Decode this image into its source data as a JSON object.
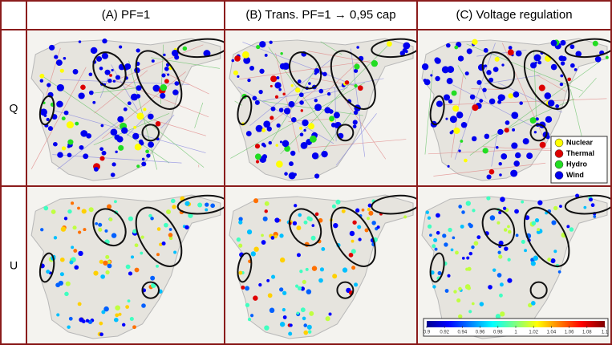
{
  "header": {
    "columns": [
      "(A) PF=1",
      "(B) Trans. PF=1 → 0,95 cap",
      "(C) Voltage regulation"
    ]
  },
  "rows": [
    {
      "label": "Q"
    },
    {
      "label": "U"
    }
  ],
  "legend": {
    "items": [
      {
        "label": "Nuclear",
        "color": "#ffff00"
      },
      {
        "label": "Thermal",
        "color": "#dd0000"
      },
      {
        "label": "Hydro",
        "color": "#22dd22"
      },
      {
        "label": "Wind",
        "color": "#0000ee"
      }
    ]
  },
  "colorbar": {
    "ticks": [
      0.9,
      0.92,
      0.94,
      0.96,
      0.98,
      1,
      1.02,
      1.04,
      1.06,
      1.08,
      1.1
    ]
  }
}
